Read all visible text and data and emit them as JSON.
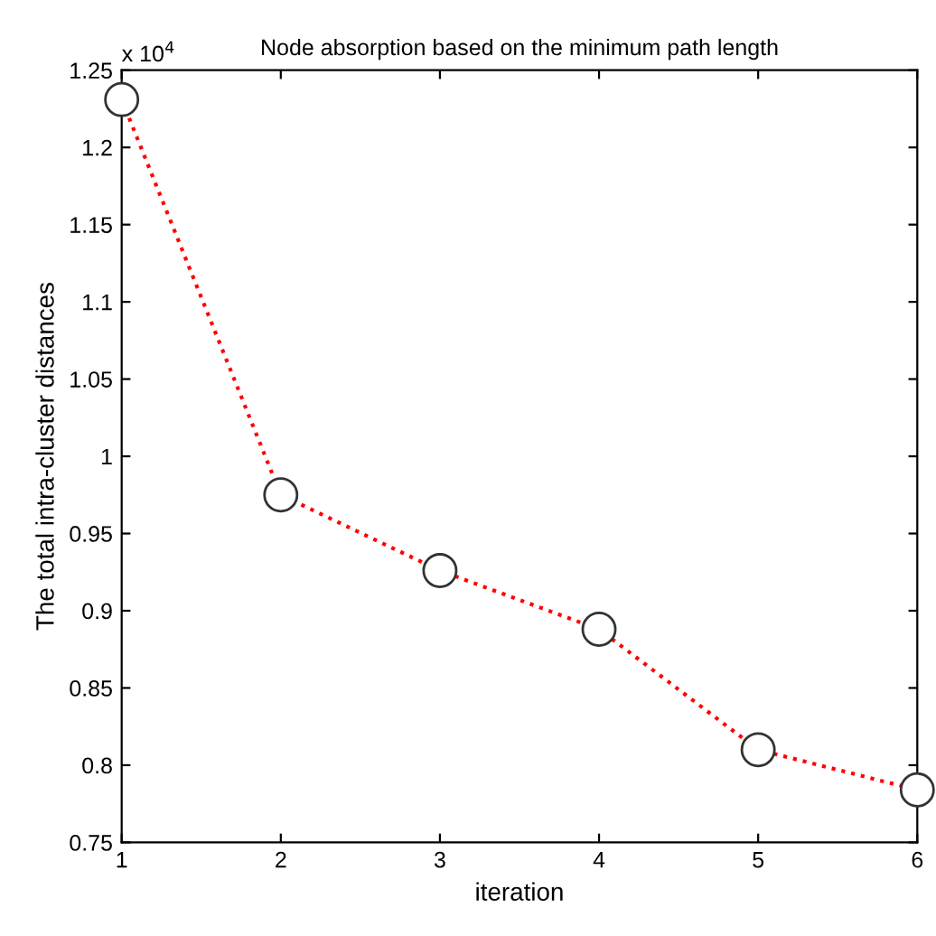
{
  "chart_data": {
    "type": "line",
    "title": "Node absorption based on the minimum path length",
    "xlabel": "iteration",
    "ylabel": "The total intra-cluster distances",
    "annotations": [
      "x 10$^{4}$"
    ],
    "x": [
      1,
      2,
      3,
      4,
      5,
      6
    ],
    "series": [
      {
        "color": "#ff0000",
        "values": [
          1.231,
          0.975,
          0.926,
          0.888,
          0.81,
          0.784
        ]
      }
    ],
    "xlim": [
      1,
      6
    ],
    "xticks": [
      1,
      2,
      3,
      4,
      5,
      6
    ],
    "ylim": [
      0.75,
      1.25
    ],
    "yticks": [
      0.75,
      0.8,
      0.85,
      0.9,
      0.95,
      1,
      1.05,
      1.1,
      1.15,
      1.2,
      1.25
    ],
    "marker": "circle",
    "line_style": "dotted",
    "grid": false
  }
}
